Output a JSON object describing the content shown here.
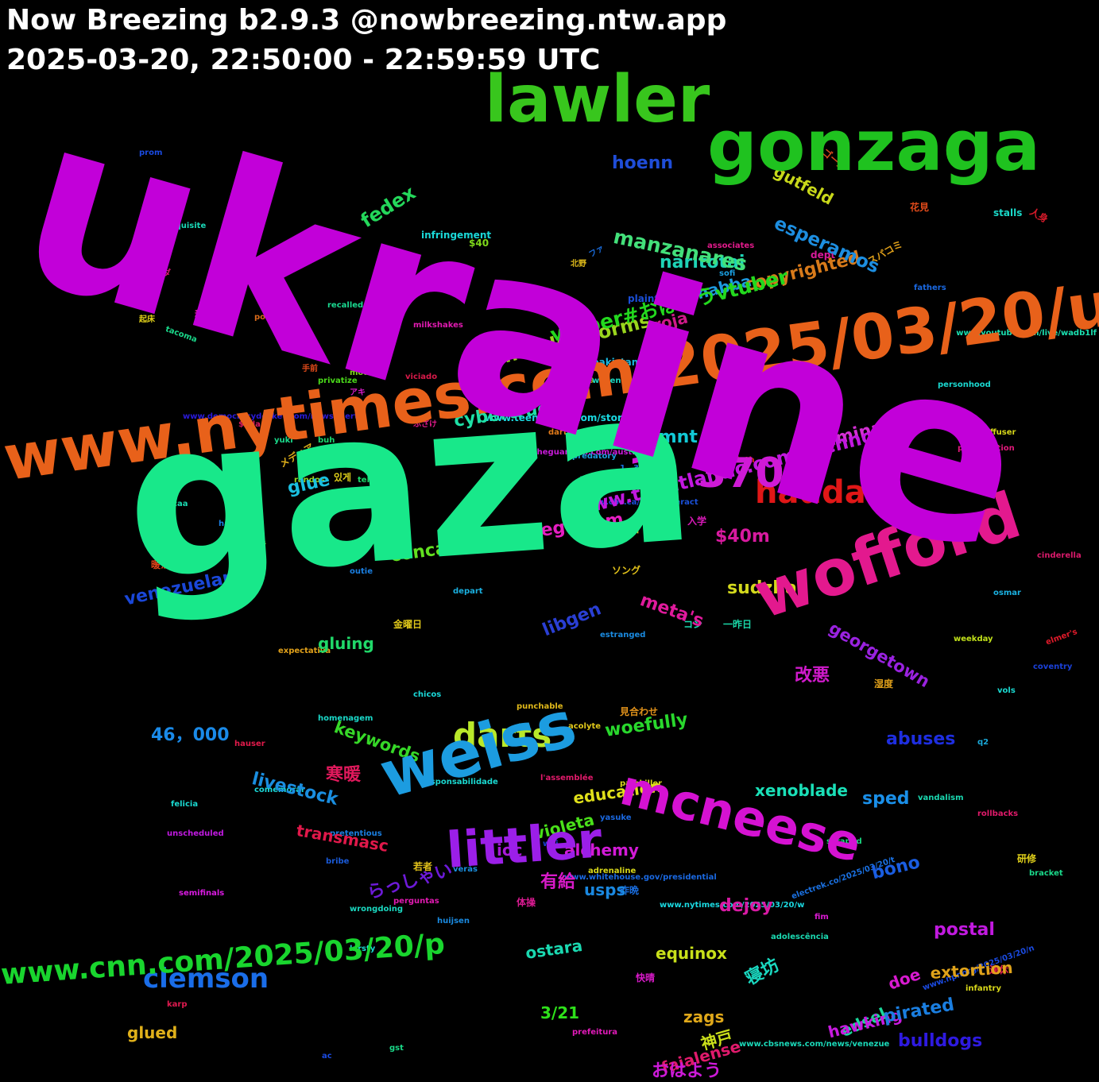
{
  "header": {
    "line1": "Now Breezing b2.9.3 @nowbreezing.ntw.app",
    "line2": "2025-03-20, 22:50:00 - 22:59:59 UTC"
  },
  "words": [
    {
      "text": "ukraine",
      "color": "#c200d9"
    },
    {
      "text": "gaza",
      "color": "#18e88a"
    },
    {
      "text": "www.nytimes.com/2025/03/20/u",
      "color": "#e8611a"
    },
    {
      "text": "lawler",
      "color": "#38c61d"
    },
    {
      "text": "gonzaga",
      "color": "#1fc21f"
    },
    {
      "text": "wofford",
      "color": "#e3198e"
    },
    {
      "text": "weiss",
      "color": "#1c9ce0"
    },
    {
      "text": "mcneese",
      "color": "#d512d2"
    },
    {
      "text": "littler",
      "color": "#9b1fe8"
    },
    {
      "text": "1，370",
      "color": "#cf1ad6"
    },
    {
      "text": "haddad",
      "color": "#e01717"
    },
    {
      "text": "darts",
      "color": "#b9e82a"
    },
    {
      "text": "www.cnn.com/2025/03/20/p",
      "color": "#19d52e"
    },
    {
      "text": "clemson",
      "color": "#1a6de8"
    },
    {
      "text": "www.theatlantic.com/technology/a",
      "color": "#c218e0"
    },
    {
      "text": "vtuber#おはようvtuber",
      "color": "#23d81e"
    },
    {
      "text": "thunderstorms",
      "color": "#9ad51d"
    },
    {
      "text": "manzanares",
      "color": "#43e07a"
    },
    {
      "text": "naritotai",
      "color": "#1ed3b6"
    },
    {
      "text": "hoenn",
      "color": "#1f4dd8"
    },
    {
      "text": "fedex",
      "color": "#24d85b"
    },
    {
      "text": "esperamos",
      "color": "#1d8ee0"
    },
    {
      "text": "gutfeld",
      "color": "#c8d81a"
    },
    {
      "text": "copyrighted",
      "color": "#d87a1a"
    },
    {
      "text": "habba",
      "color": "#1d9ae0"
    },
    {
      "text": "roja",
      "color": "#d01a8a"
    },
    {
      "text": "usmnt",
      "color": "#12c9d6"
    },
    {
      "text": "cybertrucks",
      "color": "#1ee0a6"
    },
    {
      "text": "$40m",
      "color": "#d81a9f"
    },
    {
      "text": "sudzha",
      "color": "#d3d91d"
    },
    {
      "text": "éliminatoires",
      "color": "#d42fd4"
    },
    {
      "text": "georgetown",
      "color": "#9a22e0"
    },
    {
      "text": "glue",
      "color": "#1abfe0"
    },
    {
      "text": "veganism",
      "color": "#e61ec2"
    },
    {
      "text": "concacaf",
      "color": "#62e020"
    },
    {
      "text": "venezuelan",
      "color": "#1a47d8"
    },
    {
      "text": "meta's",
      "color": "#e01a9c"
    },
    {
      "text": "libgen",
      "color": "#2a3fd4"
    },
    {
      "text": "gluing",
      "color": "#20d869"
    },
    {
      "text": "改悪",
      "color": "#d01acb"
    },
    {
      "text": "46，000",
      "color": "#1a8ae8"
    },
    {
      "text": "keywords",
      "color": "#36d828"
    },
    {
      "text": "woefully",
      "color": "#29d82d"
    },
    {
      "text": "abuses",
      "color": "#1e2ee0"
    },
    {
      "text": "寒暖",
      "color": "#e0195c"
    },
    {
      "text": "livestock",
      "color": "#1a8ee0"
    },
    {
      "text": "xenoblade",
      "color": "#1ae0b8"
    },
    {
      "text": "sped",
      "color": "#1a8fe8"
    },
    {
      "text": "education",
      "color": "#e0e01a"
    },
    {
      "text": "transmasc",
      "color": "#e0184a"
    },
    {
      "text": "violeta",
      "color": "#4ae01a"
    },
    {
      "text": "ioc",
      "color": "#a81ad8"
    },
    {
      "text": "alchemy",
      "color": "#d21ad6"
    },
    {
      "text": "bono",
      "color": "#1a5de0"
    },
    {
      "text": "有給",
      "color": "#d81ac8"
    },
    {
      "text": "usps",
      "color": "#1a88e0"
    },
    {
      "text": "らっしゃい",
      "color": "#6d1ad8"
    },
    {
      "text": "dejoy",
      "color": "#d81aa4"
    },
    {
      "text": "postal",
      "color": "#c21ae0"
    },
    {
      "text": "extortion",
      "color": "#e0a31a"
    },
    {
      "text": "equinox",
      "color": "#c8e01a"
    },
    {
      "text": "ostara",
      "color": "#1ad8b0"
    },
    {
      "text": "doe",
      "color": "#d81ad0"
    },
    {
      "text": "pirated",
      "color": "#1a7ee0"
    },
    {
      "text": "hawking",
      "color": "#c81ae0"
    },
    {
      "text": "寝坊",
      "color": "#1ad8c0"
    },
    {
      "text": "glued",
      "color": "#e0b01a"
    },
    {
      "text": "edsel",
      "color": "#1ad89b"
    },
    {
      "text": "3/21",
      "color": "#2ee01a"
    },
    {
      "text": "zags",
      "color": "#e0a81a"
    },
    {
      "text": "神戸",
      "color": "#cbe01a"
    },
    {
      "text": "bulldogs",
      "color": "#2e1ae0"
    },
    {
      "text": "おはよう",
      "color": "#cc1ad8"
    },
    {
      "text": "faialense",
      "color": "#e01a6c"
    },
    {
      "text": "ゴール",
      "color": "#d84a1a"
    },
    {
      "text": "花見",
      "color": "#e04a1a"
    },
    {
      "text": "人身",
      "color": "#d81a2a"
    },
    {
      "text": "stalls",
      "color": "#1ad8c8"
    },
    {
      "text": "prom",
      "color": "#1a4ae0"
    },
    {
      "text": "$40",
      "color": "#7ed81a"
    },
    {
      "text": "prerequisite",
      "color": "#1ad8b8"
    },
    {
      "text": "infringement",
      "color": "#1ad8d8"
    },
    {
      "text": "北野",
      "color": "#e0bb1a"
    },
    {
      "text": "ファ",
      "color": "#1a6ee0"
    },
    {
      "text": "associates",
      "color": "#e01a8a"
    },
    {
      "text": "dept",
      "color": "#d81a9a"
    },
    {
      "text": "スパコミ",
      "color": "#e0a01a"
    },
    {
      "text": "ベランダ",
      "color": "#e01a74"
    },
    {
      "text": "arcadia",
      "color": "#7ee01a"
    },
    {
      "text": "sofi",
      "color": "#1a9ee0"
    },
    {
      "text": "fathers",
      "color": "#1a68e0"
    },
    {
      "text": "recalled",
      "color": "#1ad890"
    },
    {
      "text": "plaintiffs",
      "color": "#1a4ed8"
    },
    {
      "text": "移動",
      "color": "#e01aaa"
    },
    {
      "text": "起床",
      "color": "#e0d01a"
    },
    {
      "text": "pomerantz",
      "color": "#d86a1a"
    },
    {
      "text": "tacoma",
      "color": "#1ad88a"
    },
    {
      "text": "milkshakes",
      "color": "#e01ab0"
    },
    {
      "text": "www.youtube.com/live/wadb1lf",
      "color": "#1ae0b0"
    },
    {
      "text": "pakistani",
      "color": "#1ab8e0"
    },
    {
      "text": "手前",
      "color": "#e04a1a"
    },
    {
      "text": "modular",
      "color": "#7ed81a"
    },
    {
      "text": "viciado",
      "color": "#d81a4a"
    },
    {
      "text": "privatize",
      "color": "#4ad81a"
    },
    {
      "text": "woven",
      "color": "#1ad8c0"
    },
    {
      "text": "personhood",
      "color": "#1ad8d0"
    },
    {
      "text": "mcmahon",
      "color": "#1aa0d8"
    },
    {
      "text": "アキ",
      "color": "#d81ac8"
    },
    {
      "text": "manaus",
      "color": "#d8b81a"
    },
    {
      "text": "www.democracydocket.com/news-alerts",
      "color": "#2a1ad8"
    },
    {
      "text": "$tsla",
      "color": "#d81a60"
    },
    {
      "text": "www.teenvogue.com/story/vivian",
      "color": "#1ad8e0"
    },
    {
      "text": "ふざけ",
      "color": "#e01a8a"
    },
    {
      "text": "darter",
      "color": "#e07a1a"
    },
    {
      "text": "diffuser",
      "color": "#d8d81a"
    },
    {
      "text": "buh",
      "color": "#1ad870"
    },
    {
      "text": "yuki",
      "color": "#1ad88a"
    },
    {
      "text": "www.theguardian.com/australia-ne",
      "color": "#c81ad8"
    },
    {
      "text": "privatization",
      "color": "#e01a7a"
    },
    {
      "text": "predatory",
      "color": "#1a9ee0"
    },
    {
      "text": "メディア",
      "color": "#e0b01a"
    },
    {
      "text": "있게",
      "color": "#e0d01a"
    },
    {
      "text": "randos",
      "color": "#9ad81a"
    },
    {
      "text": "ninth",
      "color": "#e0271a"
    },
    {
      "text": "1，371",
      "color": "#1a70e0"
    },
    {
      "text": "waved",
      "color": "#1ad8c0"
    },
    {
      "text": "teh",
      "color": "#1ad86a"
    },
    {
      "text": "tati",
      "color": "#d81aa0"
    },
    {
      "text": "入学",
      "color": "#d81ab8"
    },
    {
      "text": "www.cbc.ca/newsinteract",
      "color": "#1a50d8"
    },
    {
      "text": "ncaa",
      "color": "#1ad8b0"
    },
    {
      "text": "hageman",
      "color": "#1a7ee0"
    },
    {
      "text": "良品",
      "color": "#d8c81a"
    },
    {
      "text": "朝食",
      "color": "#e0a01a"
    },
    {
      "text": "寝起き",
      "color": "#8ad81a"
    },
    {
      "text": "shakedown",
      "color": "#7ed81a"
    },
    {
      "text": "暖かく",
      "color": "#e0431a"
    },
    {
      "text": "outie",
      "color": "#1a7ee0"
    },
    {
      "text": "cinderella",
      "color": "#d81a6a"
    },
    {
      "text": "ソング",
      "color": "#e0c01a"
    },
    {
      "text": "depart",
      "color": "#1ab0e0"
    },
    {
      "text": "osmar",
      "color": "#1ab0e0"
    },
    {
      "text": "金曜日",
      "color": "#e0c81a"
    },
    {
      "text": "コン",
      "color": "#1ad8b0"
    },
    {
      "text": "一昨日",
      "color": "#1ad8a8"
    },
    {
      "text": "estranged",
      "color": "#1a8ae0"
    },
    {
      "text": "weekday",
      "color": "#c0e01a"
    },
    {
      "text": "elmer's",
      "color": "#e01a2a"
    },
    {
      "text": "expectativa",
      "color": "#e0a01a"
    },
    {
      "text": "coventry",
      "color": "#1a40d8"
    },
    {
      "text": "chicos",
      "color": "#1ad8d8"
    },
    {
      "text": "湿度",
      "color": "#e0a01a"
    },
    {
      "text": "vols",
      "color": "#1ad8d0"
    },
    {
      "text": "punchable",
      "color": "#e0b81a"
    },
    {
      "text": "見合わせ",
      "color": "#e0911a"
    },
    {
      "text": "homenagem",
      "color": "#1ad8c8"
    },
    {
      "text": "acolyte",
      "color": "#e0c81a"
    },
    {
      "text": "hauser",
      "color": "#e01a4a"
    },
    {
      "text": "q2",
      "color": "#1aa8d8"
    },
    {
      "text": "l'assemblée",
      "color": "#e01a6a"
    },
    {
      "text": "responsabilidade",
      "color": "#1ad8d0"
    },
    {
      "text": "comemorar",
      "color": "#1ad8d8"
    },
    {
      "text": "painkiller",
      "color": "#d8d81a"
    },
    {
      "text": "vandalism",
      "color": "#1ad8b0"
    },
    {
      "text": "felicia",
      "color": "#1ad8d0"
    },
    {
      "text": "rollbacks",
      "color": "#e01a6a"
    },
    {
      "text": "yasuke",
      "color": "#1a68e0"
    },
    {
      "text": "unscheduled",
      "color": "#c01ae0"
    },
    {
      "text": "pretentious",
      "color": "#1a7ee0"
    },
    {
      "text": "woj",
      "color": "#1a40d8"
    },
    {
      "text": "scraped",
      "color": "#1ad880"
    },
    {
      "text": "研修",
      "color": "#e0d01a"
    },
    {
      "text": "若者",
      "color": "#e0c01a"
    },
    {
      "text": "bribe",
      "color": "#1a5ad8"
    },
    {
      "text": "verás",
      "color": "#1a90e0"
    },
    {
      "text": "adrenaline",
      "color": "#d8d81a"
    },
    {
      "text": "www.whitehouse.gov/presidential",
      "color": "#1a68e0"
    },
    {
      "text": "bracket",
      "color": "#1ad88a"
    },
    {
      "text": "昨晩",
      "color": "#1a6ee0"
    },
    {
      "text": "semifinals",
      "color": "#d81ae0"
    },
    {
      "text": "wrongdoing",
      "color": "#1ad8c0"
    },
    {
      "text": "perguntas",
      "color": "#e01ab0"
    },
    {
      "text": "体操",
      "color": "#d81a90"
    },
    {
      "text": "www.nytimes.com/2025/03/20/w",
      "color": "#1ad8e0"
    },
    {
      "text": "electrek.co/2025/03/20/t",
      "color": "#1a70e0"
    },
    {
      "text": "fim",
      "color": "#d81ad0"
    },
    {
      "text": "huijsen",
      "color": "#1a8ae0"
    },
    {
      "text": "adolescência",
      "color": "#1ad8b0"
    },
    {
      "text": "kirsty",
      "color": "#1ad8d0"
    },
    {
      "text": "快晴",
      "color": "#d81ac8"
    },
    {
      "text": "連休",
      "color": "#e01a50"
    },
    {
      "text": "infantry",
      "color": "#d8d81a"
    },
    {
      "text": "karp",
      "color": "#e01a50"
    },
    {
      "text": "www.npr.org/2025/03/20/n",
      "color": "#1a4ae0"
    },
    {
      "text": "prefeitura",
      "color": "#e01ab8"
    },
    {
      "text": "gst",
      "color": "#1ad888"
    },
    {
      "text": "ac",
      "color": "#1a4ae0"
    },
    {
      "text": "www.cbsnews.com/news/venezue",
      "color": "#1ad8b8"
    }
  ]
}
